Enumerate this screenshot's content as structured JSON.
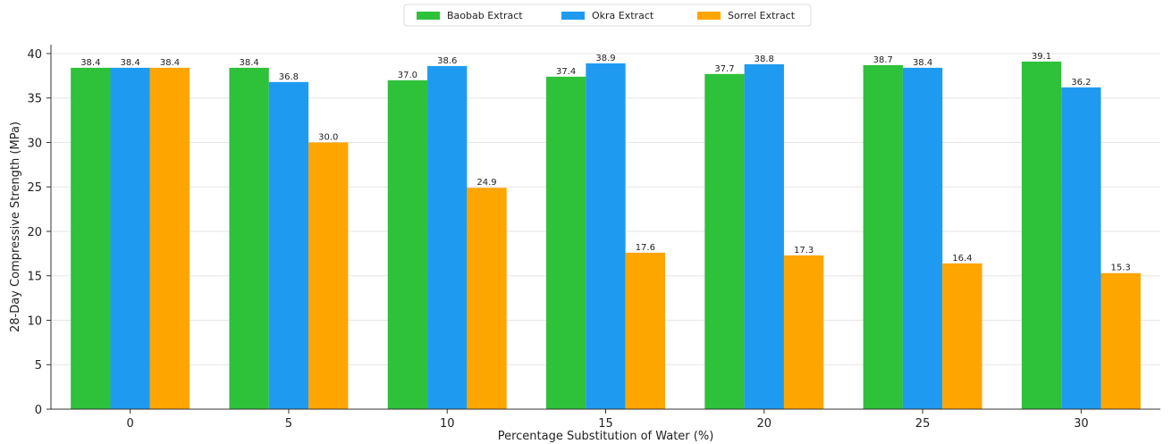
{
  "chart_data": {
    "type": "bar",
    "categories": [
      "0",
      "5",
      "10",
      "15",
      "20",
      "25",
      "30"
    ],
    "series": [
      {
        "name": "Baobab Extract",
        "color": "#2ec13a",
        "values": [
          38.4,
          38.4,
          37.0,
          37.4,
          37.7,
          38.7,
          39.1
        ]
      },
      {
        "name": "Okra Extract",
        "color": "#1e9bf0",
        "values": [
          38.4,
          36.8,
          38.6,
          38.9,
          38.8,
          38.4,
          36.2
        ]
      },
      {
        "name": "Sorrel Extract",
        "color": "#ffa500",
        "values": [
          38.4,
          30.0,
          24.9,
          17.6,
          17.3,
          16.4,
          15.3
        ]
      }
    ],
    "data_labels": [
      [
        "38.4",
        "38.4",
        "37.0",
        "37.4",
        "37.7",
        "38.7",
        "39.1"
      ],
      [
        "38.4",
        "36.8",
        "38.6",
        "38.9",
        "38.8",
        "38.4",
        "36.2"
      ],
      [
        "38.4",
        "30.0",
        "24.9",
        "17.6",
        "17.3",
        "16.4",
        "15.3"
      ]
    ],
    "title": "",
    "xlabel": "Percentage Substitution of Water (%)",
    "ylabel": "28-Day Compressive Strength (MPa)",
    "ylim": [
      0,
      41
    ],
    "yticks": [
      "0",
      "5",
      "10",
      "15",
      "20",
      "25",
      "30",
      "35",
      "40"
    ],
    "grid": true,
    "legend_position": "top-center"
  }
}
